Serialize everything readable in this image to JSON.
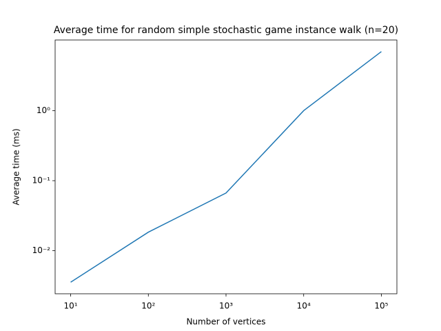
{
  "chart_data": {
    "type": "line",
    "title": "Average time for random simple stochastic game instance walk (n=20)",
    "x_label": "Number of vertices",
    "y_label": "Average time (ms)",
    "x": [
      10,
      100,
      1000,
      10000,
      100000
    ],
    "values": [
      0.00355,
      0.0184,
      0.0667,
      1.0,
      6.97
    ],
    "color": "#1f77b4",
    "x_scale": "log",
    "y_scale": "log",
    "xlim": [
      6.31,
      158489
    ],
    "ylim": [
      0.00243,
      10.2
    ],
    "xticks": [
      {
        "value": 10,
        "label": "10¹"
      },
      {
        "value": 100,
        "label": "10²"
      },
      {
        "value": 1000,
        "label": "10³"
      },
      {
        "value": 10000,
        "label": "10⁴"
      },
      {
        "value": 100000,
        "label": "10⁵"
      }
    ],
    "yticks": [
      {
        "value": 0.01,
        "label": "10⁻²"
      },
      {
        "value": 0.1,
        "label": "10⁻¹"
      },
      {
        "value": 1,
        "label": "10⁰"
      }
    ],
    "grid": false
  }
}
